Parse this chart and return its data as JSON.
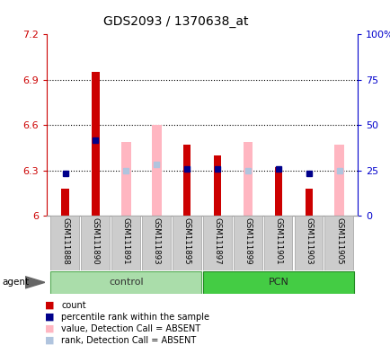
{
  "title": "GDS2093 / 1370638_at",
  "samples": [
    "GSM111888",
    "GSM111890",
    "GSM111891",
    "GSM111893",
    "GSM111895",
    "GSM111897",
    "GSM111899",
    "GSM111901",
    "GSM111903",
    "GSM111905"
  ],
  "ylim_left": [
    6.0,
    7.2
  ],
  "ylim_right": [
    0,
    100
  ],
  "yticks_left": [
    6.0,
    6.3,
    6.6,
    6.9,
    7.2
  ],
  "yticks_right": [
    0,
    25,
    50,
    75,
    100
  ],
  "ytick_labels_left": [
    "6",
    "6.3",
    "6.6",
    "6.9",
    "7.2"
  ],
  "ytick_labels_right": [
    "0",
    "25",
    "50",
    "75",
    "100%"
  ],
  "red_bars": [
    6.18,
    6.95,
    null,
    null,
    6.47,
    6.4,
    null,
    6.32,
    6.18,
    null
  ],
  "pink_bars": [
    null,
    null,
    6.49,
    6.6,
    null,
    null,
    6.49,
    null,
    null,
    6.47
  ],
  "blue_dots": [
    6.28,
    6.5,
    null,
    null,
    6.31,
    6.31,
    null,
    6.31,
    6.28,
    null
  ],
  "light_blue_dots": [
    null,
    null,
    6.3,
    6.34,
    null,
    null,
    6.3,
    null,
    null,
    6.3
  ],
  "red_bar_width": 0.25,
  "pink_bar_width": 0.32,
  "legend_items": [
    {
      "color": "#cc0000",
      "label": "count"
    },
    {
      "color": "#00008b",
      "label": "percentile rank within the sample"
    },
    {
      "color": "#ffb6c1",
      "label": "value, Detection Call = ABSENT"
    },
    {
      "color": "#b0c4de",
      "label": "rank, Detection Call = ABSENT"
    }
  ],
  "left_axis_color": "#cc0000",
  "right_axis_color": "#0000cc",
  "background_color": "#ffffff",
  "control_color": "#aaddaa",
  "pcn_color": "#44cc44",
  "sample_bg_color": "#cccccc",
  "sample_edge_color": "#aaaaaa"
}
